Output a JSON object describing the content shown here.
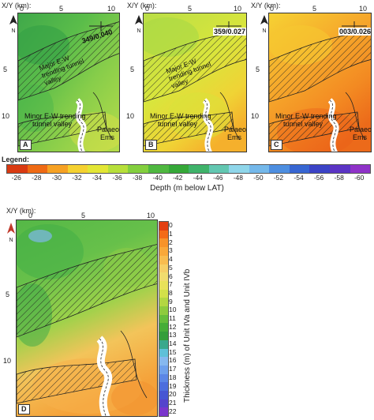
{
  "axis": {
    "xy_label": "X/Y (km):",
    "x_ticks": [
      "0",
      "5",
      "10"
    ],
    "y_ticks": [
      "5",
      "10"
    ]
  },
  "north_label": "N",
  "panels": [
    {
      "letter": "A",
      "palette": "green",
      "bearing_label": "349/0.040",
      "tunnel_valley_label": "Major E-W trending tunnel valley",
      "minor_label_1": "Minor E-W trending",
      "minor_label_2": "tunnel valley",
      "ems_label_1": "Palaeo-",
      "ems_label_2": "Ems"
    },
    {
      "letter": "B",
      "palette": "lime",
      "bearing_label": "359/0.027",
      "tunnel_valley_label": "Major E-W trending tunnel valley",
      "minor_label_1": "Minor E-W trending",
      "minor_label_2": "tunnel valley",
      "ems_label_1": "Palaeo-",
      "ems_label_2": "Ems"
    },
    {
      "letter": "C",
      "palette": "orange",
      "bearing_label": "003/0.026",
      "tunnel_valley_label": "",
      "minor_label_1": "Minor E-W trending",
      "minor_label_2": "tunnel valley",
      "ems_label_1": "Palaeo-",
      "ems_label_2": "Ems"
    }
  ],
  "depth_legend": {
    "title": "Legend:",
    "labels": [
      "-26",
      "-28",
      "-30",
      "-32",
      "-34",
      "-36",
      "-38",
      "-40",
      "-42",
      "-44",
      "-46",
      "-48",
      "-50",
      "-52",
      "-54",
      "-56",
      "-58",
      "-60"
    ],
    "caption": "Depth (m below LAT)",
    "colors": [
      "#d93a12",
      "#ef6a14",
      "#f6a123",
      "#f5d130",
      "#e3e635",
      "#b7df3a",
      "#83cf3e",
      "#4fb840",
      "#35a838",
      "#3fb36a",
      "#62c7b1",
      "#8fd6ea",
      "#74b8ea",
      "#4d8ee0",
      "#3766d2",
      "#3b43c6",
      "#5b34c4",
      "#8f32c8"
    ]
  },
  "panel_d": {
    "letter": "D",
    "thickness_labels": [
      "0",
      "1",
      "2",
      "3",
      "4",
      "5",
      "6",
      "7",
      "8",
      "9",
      "10",
      "11",
      "12",
      "13",
      "14",
      "15",
      "16",
      "17",
      "18",
      "19",
      "20",
      "21",
      "22"
    ],
    "thickness_title": "Thickness (m) of Unit IVa and Unit IVb",
    "colors": [
      "#e23f12",
      "#f36b18",
      "#f7932a",
      "#f9a83a",
      "#f8bc4f",
      "#f6cf66",
      "#f1dc6e",
      "#e8e25a",
      "#d2e04a",
      "#b3d742",
      "#8ecb3d",
      "#66bd3b",
      "#46ad38",
      "#349e3a",
      "#3aa88c",
      "#5fc0d8",
      "#86b8ef",
      "#6ea0ec",
      "#5b86e6",
      "#4c6ddd",
      "#4656d3",
      "#5444cc",
      "#7a36cc"
    ]
  }
}
